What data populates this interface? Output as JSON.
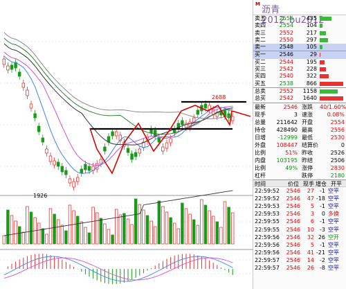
{
  "header": {
    "symbol_name": "沥青2012",
    "symbol_code": "bu2012",
    "logo_text": "M"
  },
  "chart": {
    "price_label_low": "1926",
    "price_label_high": "2688",
    "colors": {
      "up": "#e83333",
      "down": "#1a9a1a",
      "ma1": "#333333",
      "ma2": "#d44fd4",
      "ma3": "#3b82f6",
      "ma4": "#2f7d2f",
      "ma5": "#8a8a8a",
      "annot": "#dd0000",
      "hline": "#000000",
      "grid": "#b8d8e8"
    }
  },
  "order_book": {
    "asks": [
      {
        "label": "卖五",
        "price": "2556",
        "volume": "435",
        "level": 0.5,
        "price_color": "green"
      },
      {
        "label": "卖四",
        "price": "2554",
        "volume": "104",
        "level": 0.12,
        "price_color": "green"
      },
      {
        "label": "卖三",
        "price": "2552",
        "volume": "217",
        "level": 0.25,
        "price_color": "red"
      },
      {
        "label": "卖二",
        "price": "2550",
        "volume": "297",
        "level": 0.34,
        "price_color": "red"
      },
      {
        "label": "卖一",
        "price": "2548",
        "volume": "105",
        "level": 0.12,
        "price_color": "black"
      }
    ],
    "bids": [
      {
        "label": "买一",
        "price": "2546",
        "volume": "29",
        "level": 0.03,
        "price_color": "black"
      },
      {
        "label": "买二",
        "price": "2544",
        "volume": "195",
        "level": 0.22,
        "price_color": "red"
      },
      {
        "label": "买三",
        "price": "2542",
        "volume": "228",
        "level": 0.26,
        "price_color": "red"
      },
      {
        "label": "买四",
        "price": "2540",
        "volume": "322",
        "level": 0.37,
        "price_color": "red"
      },
      {
        "label": "买五",
        "price": "2538",
        "volume": "866",
        "level": 1.0,
        "price_color": "green"
      }
    ],
    "totals": [
      {
        "label": "总卖",
        "price": "2552",
        "volume": "1158",
        "level": 0.75,
        "color": "#3cb83c"
      },
      {
        "label": "总买",
        "price": "2542",
        "volume": "1640",
        "level": 1.0,
        "color": "#e83333"
      }
    ]
  },
  "stats": [
    {
      "l1": "最新",
      "v1": "2546",
      "c1": "red",
      "l2": "涨跌",
      "v2": "40/1.60%",
      "c2": "red"
    },
    {
      "l1": "现手",
      "v1": "3",
      "c1": "black",
      "l2": "速涨",
      "v2": "0.08%",
      "c2": "red"
    },
    {
      "l1": "总量",
      "v1": "211642",
      "c1": "black",
      "l2": "开盘",
      "v2": "2554",
      "c2": "red"
    },
    {
      "l1": "持仓",
      "v1": "428490",
      "c1": "black",
      "l2": "最高",
      "v2": "2556",
      "c2": "red"
    },
    {
      "l1": "日增",
      "v1": "-12999",
      "c1": "green",
      "l2": "最低",
      "v2": "2530",
      "c2": "red"
    },
    {
      "l1": "外盘",
      "v1": "108447",
      "c1": "red",
      "l2": "结算价",
      "v2": "0",
      "c2": "black"
    },
    {
      "l1": "比例",
      "v1": "51%",
      "c1": "red",
      "l2": "昨收",
      "v2": "2526",
      "c2": "black"
    },
    {
      "l1": "内盘",
      "v1": "103195",
      "c1": "green",
      "l2": "昨结",
      "v2": "2506",
      "c2": "black"
    },
    {
      "l1": "比例",
      "v1": "49%",
      "c1": "green",
      "l2": "涨停",
      "v2": "2830",
      "c2": "red"
    },
    {
      "l1": "杠杆",
      "v1": "",
      "c1": "black",
      "l2": "跌停",
      "v2": "2180",
      "c2": "green"
    }
  ],
  "trades": {
    "headers": {
      "time": "时间",
      "price": "价位",
      "volume": "现手",
      "add": "增仓",
      "type": "开平"
    },
    "rows": [
      {
        "time": "22:59:52",
        "price": "2546",
        "volume": "27",
        "add": "-1",
        "type": "空平",
        "type_color": "#00a"
      },
      {
        "time": "22:59:52",
        "price": "2546",
        "volume": "47",
        "add": "-18",
        "type": "空平",
        "type_color": "#00a"
      },
      {
        "time": "22:59:53",
        "price": "2546",
        "volume": "5",
        "add": "-1",
        "type": "空平",
        "type_color": "#00a"
      },
      {
        "time": "22:59:53",
        "price": "2546",
        "volume": "3",
        "add": "0",
        "type": "多换",
        "type_color": "#e00"
      },
      {
        "time": "22:59:55",
        "price": "2546",
        "volume": "6",
        "add": "-1",
        "type": "空平",
        "type_color": "#00a"
      },
      {
        "time": "22:59:55",
        "price": "2546",
        "volume": "10",
        "add": "-3",
        "type": "空平",
        "type_color": "#00a"
      },
      {
        "time": "22:59:56",
        "price": "2546",
        "volume": "32",
        "add": "26",
        "type": "空开",
        "type_color": "#090"
      },
      {
        "time": "22:59:56",
        "price": "2546",
        "volume": "5",
        "add": "-1",
        "type": "空平",
        "type_color": "#00a"
      },
      {
        "time": "22:59:56",
        "price": "2546",
        "volume": "41",
        "add": "-21",
        "type": "空平",
        "type_color": "#00a"
      },
      {
        "time": "22:59:57",
        "price": "2546",
        "volume": "14",
        "add": "-2",
        "type": "空平",
        "type_color": "#00a"
      },
      {
        "time": "22:59:57",
        "price": "2546",
        "volume": "26",
        "add": "-8",
        "type": "空平",
        "type_color": "#00a"
      }
    ]
  }
}
